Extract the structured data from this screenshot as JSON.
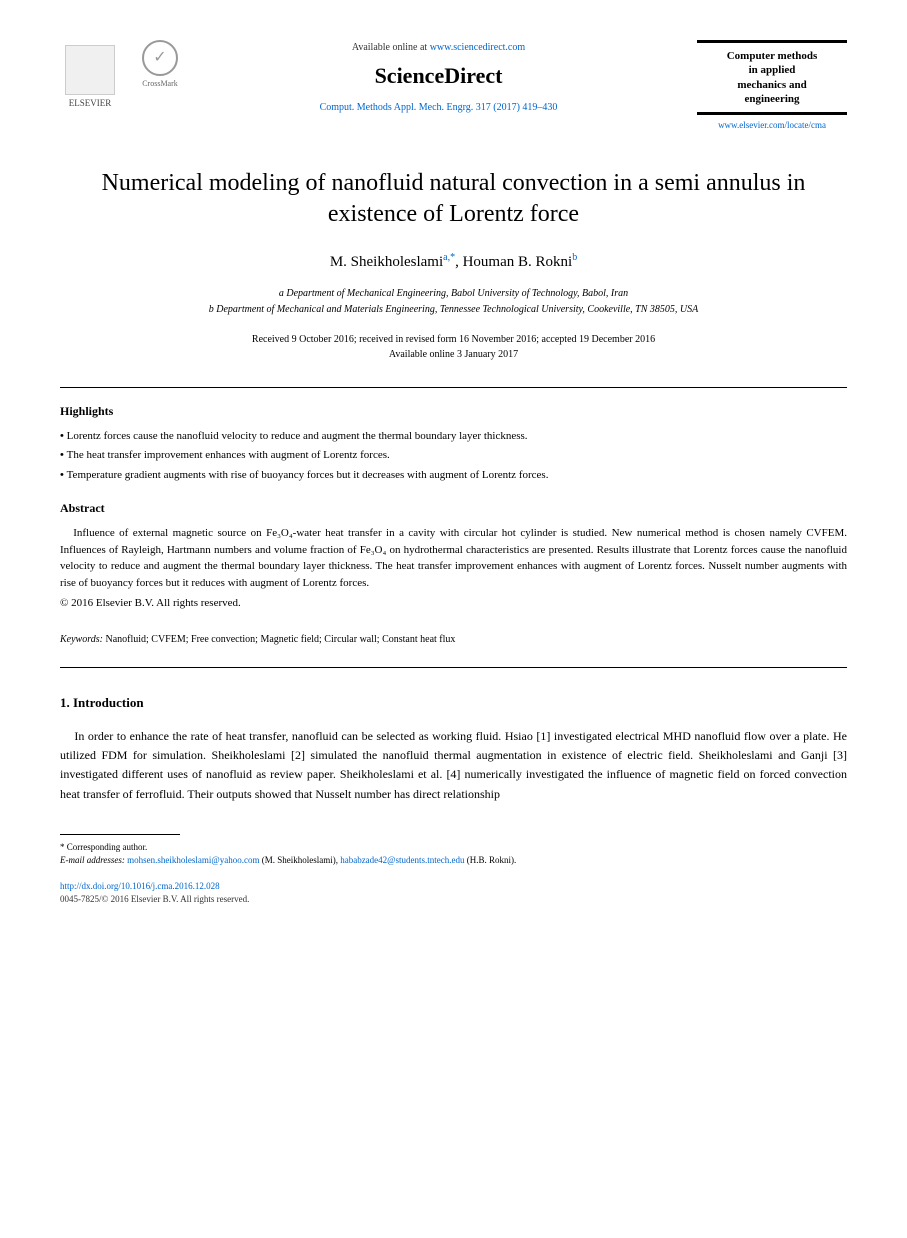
{
  "header": {
    "elsevier_label": "ELSEVIER",
    "crossmark_label": "CrossMark",
    "available_prefix": "Available online at ",
    "available_url": "www.sciencedirect.com",
    "sciencedirect_logo": "ScienceDirect",
    "journal_ref": "Comput. Methods Appl. Mech. Engrg. 317 (2017) 419–430",
    "journal_box_line1": "Computer methods",
    "journal_box_line2": "in applied",
    "journal_box_line3": "mechanics and",
    "journal_box_line4": "engineering",
    "journal_url": "www.elsevier.com/locate/cma"
  },
  "title": "Numerical modeling of nanofluid natural convection in a semi annulus in existence of Lorentz force",
  "authors": {
    "a1_name": "M. Sheikholeslami",
    "a1_sup": "a,*",
    "sep": ", ",
    "a2_name": "Houman B. Rokni",
    "a2_sup": "b"
  },
  "affiliations": {
    "a": "a Department of Mechanical Engineering, Babol University of Technology, Babol, Iran",
    "b": "b Department of Mechanical and Materials Engineering, Tennessee Technological University, Cookeville, TN 38505, USA"
  },
  "dates": {
    "line1": "Received 9 October 2016; received in revised form 16 November 2016; accepted 19 December 2016",
    "line2": "Available online 3 January 2017"
  },
  "highlights_label": "Highlights",
  "highlights": [
    "Lorentz forces cause the nanofluid velocity to reduce and augment the thermal boundary layer thickness.",
    "The heat transfer improvement enhances with augment of Lorentz forces.",
    "Temperature gradient augments with rise of buoyancy forces but it decreases with augment of Lorentz forces."
  ],
  "abstract_label": "Abstract",
  "abstract_text": "Influence of external magnetic source on Fe₃O₄-water heat transfer in a cavity with circular hot cylinder is studied. New numerical method is chosen namely CVFEM. Influences of Rayleigh, Hartmann numbers and volume fraction of Fe₃O₄ on hydrothermal characteristics are presented. Results illustrate that Lorentz forces cause the nanofluid velocity to reduce and augment the thermal boundary layer thickness. The heat transfer improvement enhances with augment of Lorentz forces. Nusselt number augments with rise of buoyancy forces but it reduces with augment of Lorentz forces.",
  "copyright": "© 2016 Elsevier B.V. All rights reserved.",
  "keywords_label": "Keywords:",
  "keywords_text": " Nanofluid; CVFEM; Free convection; Magnetic field; Circular wall; Constant heat flux",
  "intro_heading": "1.  Introduction",
  "intro_body": "In order to enhance the rate of heat transfer, nanofluid can be selected as working fluid. Hsiao [1] investigated electrical MHD nanofluid flow over a plate. He utilized FDM for simulation. Sheikholeslami [2] simulated the nanofluid thermal augmentation in existence of electric field. Sheikholeslami and Ganji [3] investigated different uses of nanofluid as review paper. Sheikholeslami et al. [4] numerically investigated the influence of magnetic field on forced convection heat transfer of ferrofluid. Their outputs showed that Nusselt number has direct relationship",
  "footnote": {
    "corresponding": "* Corresponding author.",
    "email_label": "E-mail addresses: ",
    "email1": "mohsen.sheikholeslami@yahoo.com",
    "email1_name": " (M. Sheikholeslami), ",
    "email2": "hababzade42@students.tntech.edu",
    "email2_name": " (H.B. Rokni)."
  },
  "doi": "http://dx.doi.org/10.1016/j.cma.2016.12.028",
  "issn": "0045-7825/© 2016 Elsevier B.V. All rights reserved.",
  "colors": {
    "link": "#0066cc",
    "text": "#000000",
    "background": "#ffffff"
  }
}
